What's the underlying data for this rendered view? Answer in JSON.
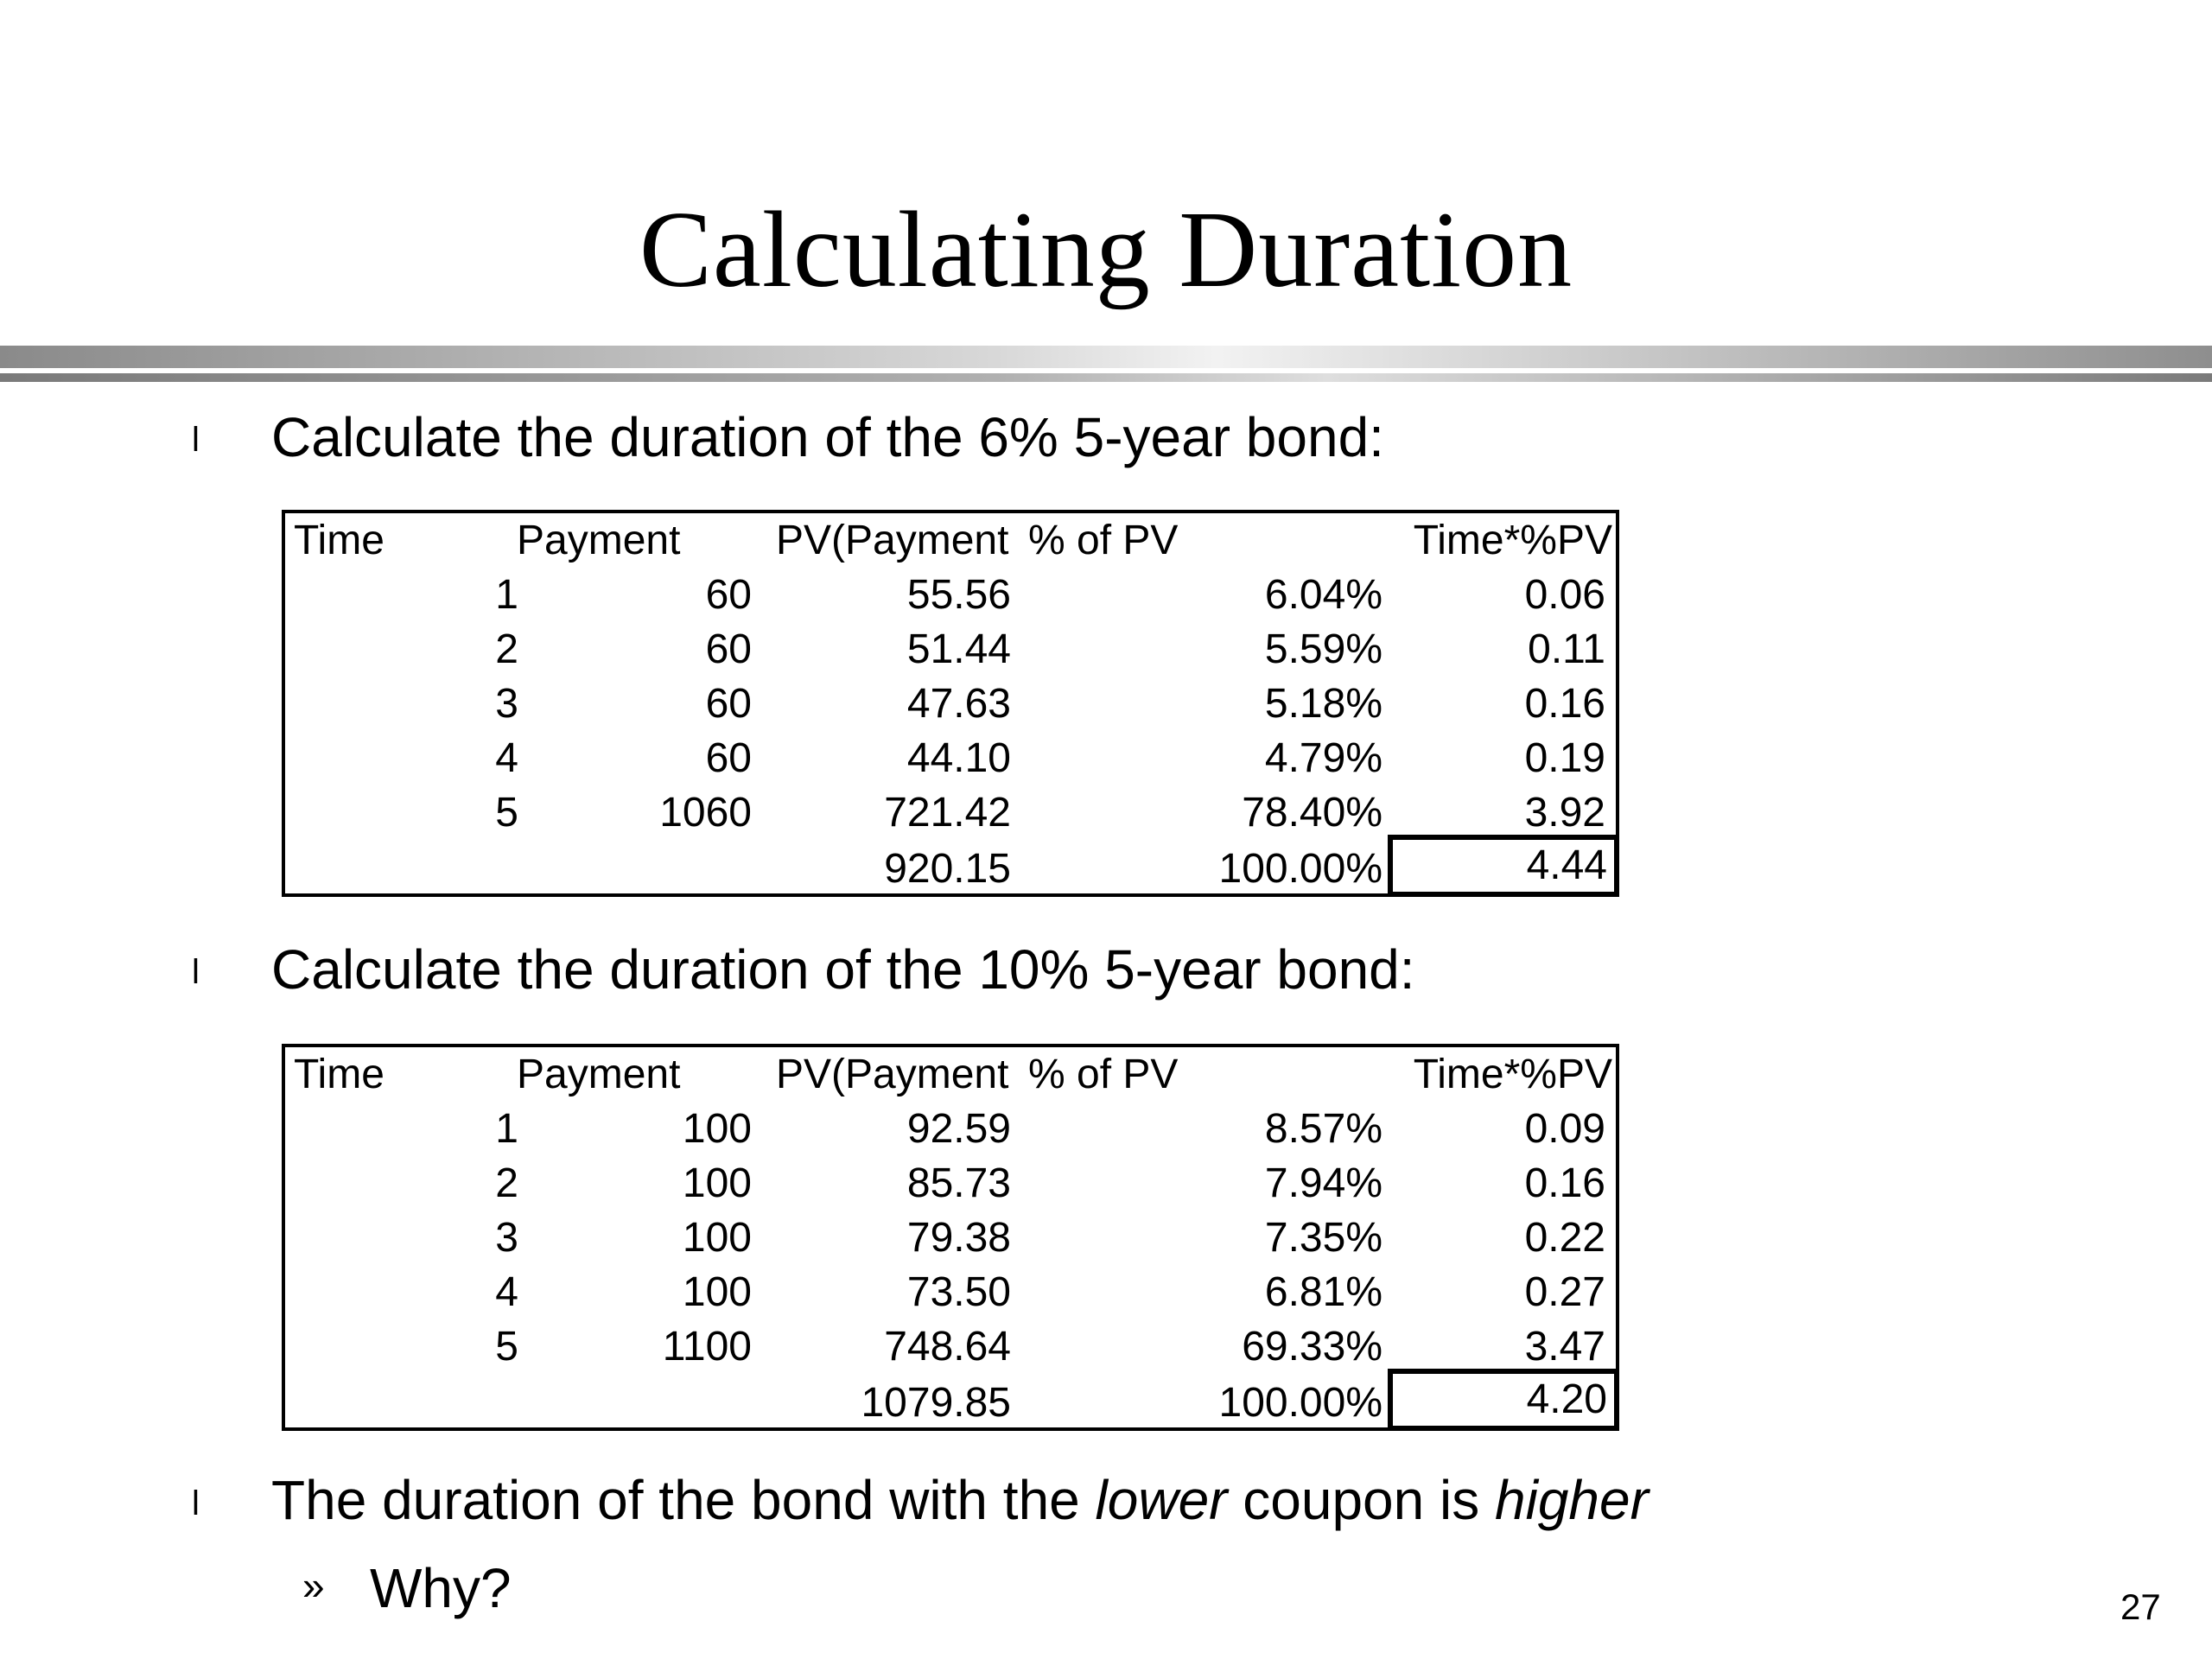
{
  "slide": {
    "title": "Calculating Duration",
    "page_number": "27"
  },
  "bullets": [
    {
      "marker": "l",
      "text": "Calculate the duration of the 6% 5-year bond:"
    },
    {
      "marker": "l",
      "text": "Calculate the duration of the 10% 5-year bond:"
    },
    {
      "marker": "l",
      "text_parts": [
        "The duration of the bond with the ",
        "lower",
        " coupon is ",
        "higher"
      ]
    }
  ],
  "sub_bullet": {
    "marker": "»",
    "text": "Why?"
  },
  "tables": [
    {
      "headers": [
        "Time",
        "Payment",
        "PV(Payment",
        "% of PV",
        "Time*%PV"
      ],
      "rows": [
        [
          "1",
          "60",
          "55.56",
          "6.04%",
          "0.06"
        ],
        [
          "2",
          "60",
          "51.44",
          "5.59%",
          "0.11"
        ],
        [
          "3",
          "60",
          "47.63",
          "5.18%",
          "0.16"
        ],
        [
          "4",
          "60",
          "44.10",
          "4.79%",
          "0.19"
        ],
        [
          "5",
          "1060",
          "721.42",
          "78.40%",
          "3.92"
        ]
      ],
      "total": {
        "pv": "920.15",
        "pct": "100.00%",
        "duration": "4.44"
      }
    },
    {
      "headers": [
        "Time",
        "Payment",
        "PV(Payment",
        "% of PV",
        "Time*%PV"
      ],
      "rows": [
        [
          "1",
          "100",
          "92.59",
          "8.57%",
          "0.09"
        ],
        [
          "2",
          "100",
          "85.73",
          "7.94%",
          "0.16"
        ],
        [
          "3",
          "100",
          "79.38",
          "7.35%",
          "0.22"
        ],
        [
          "4",
          "100",
          "73.50",
          "6.81%",
          "0.27"
        ],
        [
          "5",
          "1100",
          "748.64",
          "69.33%",
          "3.47"
        ]
      ],
      "total": {
        "pv": "1079.85",
        "pct": "100.00%",
        "duration": "4.20"
      }
    }
  ]
}
